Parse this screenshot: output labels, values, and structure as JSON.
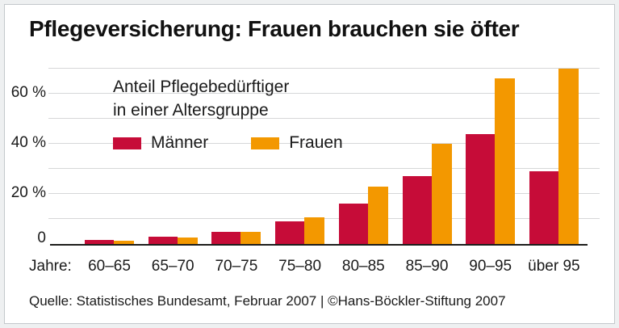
{
  "chart_data": {
    "type": "bar",
    "title": "Pflegeversicherung: Frauen brauchen sie öfter",
    "subtitle": "Anteil Pflegebedürftiger in einer Altersgruppe",
    "subtitle_lines": [
      "Anteil Pflegebedürftiger",
      "in einer Altersgruppe"
    ],
    "xlabel_prefix": "Jahre:",
    "categories": [
      "60–65",
      "65–70",
      "70–75",
      "75–80",
      "80–85",
      "85–90",
      "90–95",
      "über 95"
    ],
    "series": [
      {
        "name": "Männer",
        "color": "#c60c38",
        "values": [
          1.5,
          3,
          5,
          9,
          16,
          27,
          44,
          29
        ]
      },
      {
        "name": "Frauen",
        "color": "#f39800",
        "values": [
          1.2,
          2.5,
          5,
          10.5,
          23,
          40,
          66,
          70
        ]
      }
    ],
    "unit": "%",
    "ylim": [
      0,
      70
    ],
    "yticks": [
      {
        "value": 0,
        "label": "0"
      },
      {
        "value": 20,
        "label": "20 %"
      },
      {
        "value": 40,
        "label": "40 %"
      },
      {
        "value": 60,
        "label": "60 %"
      }
    ],
    "gridlines": [
      10,
      20,
      30,
      40,
      50,
      60,
      70
    ],
    "grid": true,
    "legend_position": "inside-top-left",
    "source": "Quelle: Statistisches Bundesamt, Februar 2007 | ©Hans-Böckler-Stiftung 2007"
  },
  "colors": {
    "maenner": "#c60c38",
    "frauen": "#f39800",
    "gridline": "#d6d7d8",
    "axis": "#1d1d1b",
    "text": "#1a1a1a",
    "card_border": "#c3c8cb",
    "page_bg": "#eef0f1"
  }
}
